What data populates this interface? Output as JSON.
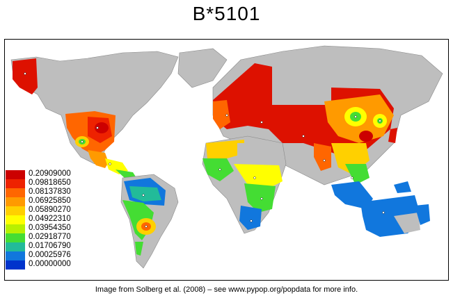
{
  "title": "B*5101",
  "caption": "Image from Solberg et al. (2008) – see www.pypop.org/popdata for more info.",
  "colors": {
    "ocean": "#ffffff",
    "land_nodata": "#bebebe",
    "border": "#000000"
  },
  "legend": {
    "items": [
      {
        "label": "0.20909000",
        "color": "#cc0000"
      },
      {
        "label": "0.09818650",
        "color": "#ee2200"
      },
      {
        "label": "0.08137830",
        "color": "#ff6600"
      },
      {
        "label": "0.06925850",
        "color": "#ff9a00"
      },
      {
        "label": "0.05890270",
        "color": "#ffd000"
      },
      {
        "label": "0.04922310",
        "color": "#ffff00"
      },
      {
        "label": "0.03954350",
        "color": "#b8f000"
      },
      {
        "label": "0.02918770",
        "color": "#44dd33"
      },
      {
        "label": "0.01706790",
        "color": "#22bb99"
      },
      {
        "label": "0.00025976",
        "color": "#1177dd"
      },
      {
        "label": "0.00000000",
        "color": "#0033cc"
      }
    ]
  }
}
